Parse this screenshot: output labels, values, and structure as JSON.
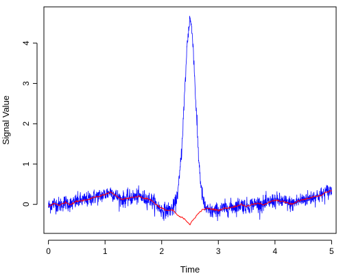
{
  "chart_data": {
    "type": "line",
    "title": "",
    "xlabel": "Time",
    "ylabel": "Signal Value",
    "xlim": [
      -0.08,
      5.08
    ],
    "ylim": [
      -0.72,
      4.9
    ],
    "x_ticks": [
      0,
      1,
      2,
      3,
      4,
      5
    ],
    "y_ticks": [
      0,
      1,
      2,
      3,
      4
    ],
    "grid": false,
    "legend": "none",
    "series": [
      {
        "color": "#0000ff",
        "description_noise": 0.14,
        "x": [
          0.0,
          0.1,
          0.2,
          0.3,
          0.4,
          0.5,
          0.6,
          0.7,
          0.8,
          0.9,
          1.0,
          1.1,
          1.2,
          1.3,
          1.4,
          1.5,
          1.6,
          1.7,
          1.8,
          1.9,
          2.0,
          2.1,
          2.2,
          2.25,
          2.3,
          2.35,
          2.4,
          2.45,
          2.5,
          2.55,
          2.6,
          2.65,
          2.7,
          2.75,
          2.8,
          2.9,
          3.0,
          3.1,
          3.2,
          3.3,
          3.4,
          3.5,
          3.6,
          3.7,
          3.8,
          3.9,
          4.0,
          4.1,
          4.2,
          4.3,
          4.4,
          4.5,
          4.6,
          4.7,
          4.8,
          4.9,
          5.0
        ],
        "y": [
          -0.05,
          0.02,
          -0.02,
          0.05,
          0.0,
          0.08,
          0.1,
          0.12,
          0.18,
          0.2,
          0.25,
          0.32,
          0.2,
          0.12,
          0.15,
          0.18,
          0.2,
          0.15,
          0.12,
          0.0,
          -0.15,
          -0.15,
          -0.1,
          0.05,
          0.45,
          1.3,
          2.6,
          4.0,
          4.65,
          4.1,
          2.6,
          1.2,
          0.35,
          -0.02,
          -0.15,
          -0.18,
          -0.15,
          -0.1,
          -0.08,
          -0.05,
          0.0,
          -0.05,
          0.0,
          0.02,
          0.0,
          0.05,
          0.1,
          0.08,
          0.05,
          0.0,
          0.08,
          0.12,
          0.15,
          0.2,
          0.22,
          0.3,
          0.35
        ]
      },
      {
        "color": "#ff0000",
        "x": [
          0.0,
          0.1,
          0.2,
          0.3,
          0.4,
          0.5,
          0.6,
          0.7,
          0.8,
          0.9,
          1.0,
          1.1,
          1.2,
          1.3,
          1.4,
          1.5,
          1.6,
          1.7,
          1.8,
          1.9,
          2.0,
          2.1,
          2.2,
          2.3,
          2.4,
          2.5,
          2.6,
          2.7,
          2.8,
          2.9,
          3.0,
          3.1,
          3.2,
          3.3,
          3.4,
          3.5,
          3.6,
          3.7,
          3.8,
          3.9,
          4.0,
          4.1,
          4.2,
          4.3,
          4.4,
          4.5,
          4.6,
          4.7,
          4.8,
          4.9,
          5.0
        ],
        "y": [
          -0.05,
          0.02,
          -0.02,
          0.05,
          0.0,
          0.08,
          0.1,
          0.12,
          0.18,
          0.2,
          0.25,
          0.3,
          0.2,
          0.12,
          0.15,
          0.18,
          0.2,
          0.15,
          0.12,
          0.0,
          -0.1,
          -0.15,
          -0.15,
          -0.3,
          -0.35,
          -0.5,
          -0.3,
          -0.15,
          -0.1,
          -0.12,
          -0.15,
          -0.1,
          -0.08,
          -0.05,
          0.0,
          -0.05,
          0.0,
          0.02,
          0.0,
          0.05,
          0.1,
          0.08,
          0.05,
          0.0,
          0.08,
          0.12,
          0.15,
          0.2,
          0.22,
          0.3,
          0.35
        ]
      }
    ]
  }
}
